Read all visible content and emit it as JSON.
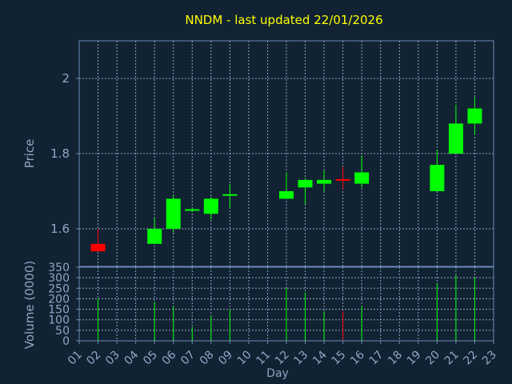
{
  "title": "NNDM - last updated 22/01/2026",
  "colors": {
    "background": "#112233",
    "frame": "#6c8ab5",
    "grid": "#8fa7c5",
    "axis_text": "#8fa7c5",
    "title": "#ffff00",
    "up": "#00ff00",
    "down": "#ff0000"
  },
  "chart_data": [
    {
      "type": "candlestick",
      "ylabel": "Price",
      "ylim": [
        1.5,
        2.1
      ],
      "yticks": [
        1.6,
        1.8,
        2
      ],
      "ytick_labels": [
        "1.6",
        "1.8",
        "2"
      ],
      "xlim": [
        1,
        23
      ],
      "grid": true,
      "candles": [
        {
          "day": 2,
          "open": 1.56,
          "close": 1.54,
          "low": 1.54,
          "high": 1.6
        },
        {
          "day": 5,
          "open": 1.56,
          "close": 1.6,
          "low": 1.56,
          "high": 1.63
        },
        {
          "day": 6,
          "open": 1.6,
          "close": 1.68,
          "low": 1.59,
          "high": 1.69
        },
        {
          "day": 7,
          "open": 1.65,
          "close": 1.65,
          "low": 1.645,
          "high": 1.655
        },
        {
          "day": 8,
          "open": 1.64,
          "close": 1.68,
          "low": 1.625,
          "high": 1.685
        },
        {
          "day": 9,
          "open": 1.69,
          "close": 1.69,
          "low": 1.655,
          "high": 1.72
        },
        {
          "day": 12,
          "open": 1.68,
          "close": 1.7,
          "low": 1.68,
          "high": 1.75
        },
        {
          "day": 13,
          "open": 1.71,
          "close": 1.73,
          "low": 1.665,
          "high": 1.735
        },
        {
          "day": 14,
          "open": 1.72,
          "close": 1.73,
          "low": 1.7,
          "high": 1.755
        },
        {
          "day": 15,
          "open": 1.73,
          "close": 1.73,
          "low": 1.705,
          "high": 1.765
        },
        {
          "day": 16,
          "open": 1.72,
          "close": 1.75,
          "low": 1.71,
          "high": 1.795
        },
        {
          "day": 20,
          "open": 1.7,
          "close": 1.77,
          "low": 1.7,
          "high": 1.81
        },
        {
          "day": 21,
          "open": 1.8,
          "close": 1.88,
          "low": 1.8,
          "high": 1.93
        },
        {
          "day": 22,
          "open": 1.88,
          "close": 1.92,
          "low": 1.85,
          "high": 1.95
        }
      ]
    },
    {
      "type": "bar",
      "ylabel": "Volume (0000)",
      "xlabel": "Day",
      "ylim": [
        0,
        350
      ],
      "yticks": [
        0,
        50,
        100,
        150,
        200,
        250,
        300,
        350
      ],
      "ytick_labels": [
        "0",
        "50",
        "100",
        "150",
        "200",
        "250",
        "300",
        "350"
      ],
      "xlim": [
        1,
        23
      ],
      "categories": [
        "01",
        "02",
        "03",
        "04",
        "05",
        "06",
        "07",
        "08",
        "09",
        "10",
        "11",
        "12",
        "13",
        "14",
        "15",
        "16",
        "17",
        "18",
        "19",
        "20",
        "21",
        "22",
        "23"
      ],
      "values": [
        {
          "day": 2,
          "volume": 200
        },
        {
          "day": 5,
          "volume": 185
        },
        {
          "day": 6,
          "volume": 165
        },
        {
          "day": 7,
          "volume": 65
        },
        {
          "day": 8,
          "volume": 120
        },
        {
          "day": 9,
          "volume": 150
        },
        {
          "day": 12,
          "volume": 250
        },
        {
          "day": 13,
          "volume": 230
        },
        {
          "day": 14,
          "volume": 140
        },
        {
          "day": 15,
          "volume": 140,
          "down": true
        },
        {
          "day": 16,
          "volume": 165
        },
        {
          "day": 20,
          "volume": 275
        },
        {
          "day": 21,
          "volume": 315
        },
        {
          "day": 22,
          "volume": 300
        }
      ]
    }
  ]
}
